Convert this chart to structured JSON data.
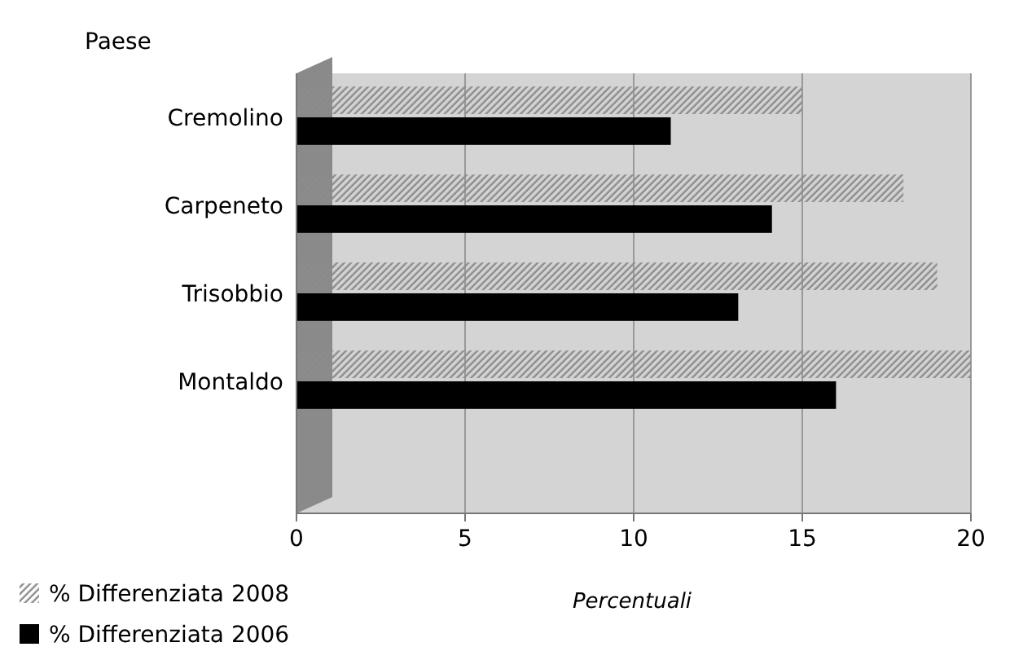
{
  "chart_data": {
    "type": "bar",
    "orientation": "horizontal",
    "ylabel": "Paese",
    "xlabel": "Percentuali",
    "categories": [
      "Cremolino",
      "Carpeneto",
      "Trisobbio",
      "Montaldo"
    ],
    "series": [
      {
        "name": "% Differenziata 2008",
        "color": "#8c8c8c",
        "values": [
          15,
          18,
          19,
          20
        ]
      },
      {
        "name": "% Differenziata 2006",
        "color": "#000000",
        "values": [
          11.1,
          14.1,
          13.1,
          16
        ]
      }
    ],
    "xlim": [
      0,
      20
    ],
    "xticks": [
      0,
      5,
      10,
      15,
      20
    ],
    "grid": "x",
    "legend": "bottom left"
  }
}
